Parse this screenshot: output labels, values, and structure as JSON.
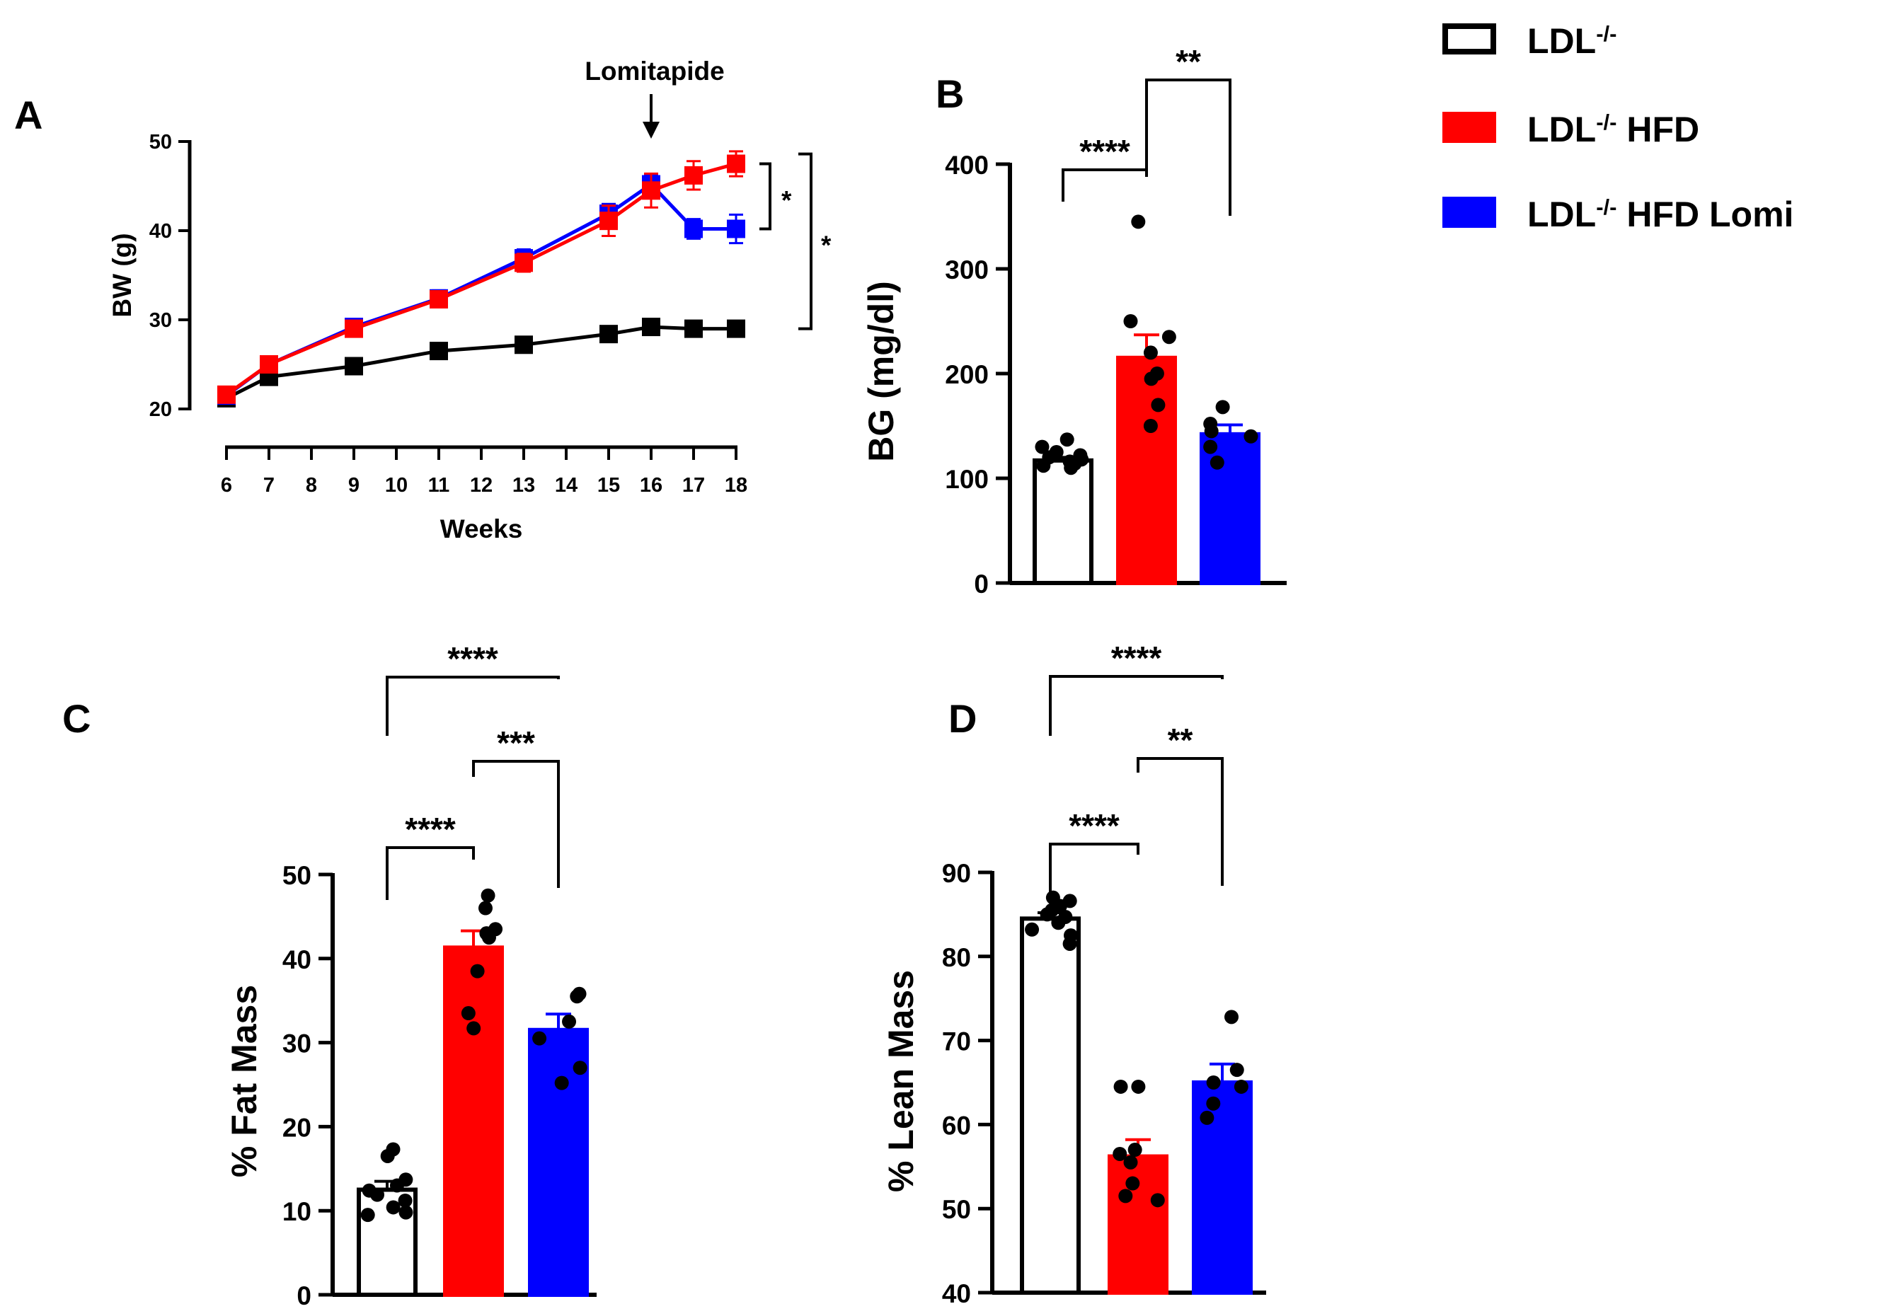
{
  "legend": {
    "items": [
      {
        "label": "LDL",
        "sup": "-/-",
        "suffix": "",
        "fill": "#ffffff",
        "stroke": "#000000"
      },
      {
        "label": "LDL",
        "sup": "-/-",
        "suffix": " HFD",
        "fill": "#ff0000",
        "stroke": "#ff0000"
      },
      {
        "label": "LDL",
        "sup": "-/-",
        "suffix": " HFD Lomi",
        "fill": "#0000ff",
        "stroke": "#0000ff"
      }
    ]
  },
  "chart_data": [
    {
      "panel": "A",
      "type": "line",
      "xlabel": "Weeks",
      "ylabel": "BW (g)",
      "ylim": [
        20,
        50
      ],
      "yticks": [
        20,
        30,
        40,
        50
      ],
      "xticks": [
        6,
        7,
        8,
        9,
        10,
        11,
        12,
        13,
        14,
        15,
        16,
        17,
        18
      ],
      "annotation": "Lomitapide",
      "annotation_x": 16,
      "significance": [
        "*",
        "*"
      ],
      "series": [
        {
          "name": "LDL-/-",
          "color": "#000000",
          "x": [
            6,
            7,
            9,
            11,
            13,
            15,
            16,
            17,
            18
          ],
          "y": [
            21.2,
            23.6,
            24.8,
            26.5,
            27.2,
            28.4,
            29.2,
            29.0,
            29.0
          ],
          "err": [
            0.6,
            0.6,
            0.6,
            0.6,
            0.6,
            0.7,
            0.7,
            0.6,
            0.6
          ]
        },
        {
          "name": "LDL-/- HFD Lomi",
          "color": "#0000ff",
          "x": [
            6,
            7,
            9,
            11,
            13,
            15,
            16,
            17,
            18
          ],
          "y": [
            21.5,
            25.0,
            29.2,
            32.4,
            36.9,
            41.9,
            45.2,
            40.2,
            40.2
          ],
          "err": [
            0.6,
            0.7,
            0.8,
            0.9,
            1.0,
            1.1,
            1.1,
            1.1,
            1.6
          ]
        },
        {
          "name": "LDL-/- HFD",
          "color": "#ff0000",
          "x": [
            6,
            7,
            9,
            11,
            13,
            15,
            16,
            17,
            18
          ],
          "y": [
            21.6,
            25.0,
            29.0,
            32.3,
            36.4,
            41.1,
            44.5,
            46.2,
            47.5
          ],
          "err": [
            0.6,
            0.7,
            0.8,
            0.9,
            1.0,
            1.7,
            1.9,
            1.6,
            1.4
          ]
        }
      ]
    },
    {
      "panel": "B",
      "type": "bar",
      "ylabel": "BG (mg/dl)",
      "ylim": [
        0,
        400
      ],
      "yticks": [
        0,
        100,
        200,
        300,
        400
      ],
      "categories": [
        "LDL-/-",
        "LDL-/- HFD",
        "LDL-/- HFD Lomi"
      ],
      "values": [
        117,
        215,
        142
      ],
      "sem": [
        3,
        22,
        9
      ],
      "points": [
        [
          137,
          130,
          125,
          122,
          120,
          118,
          116,
          114,
          112,
          110
        ],
        [
          345,
          250,
          235,
          220,
          200,
          195,
          170,
          150
        ],
        [
          168,
          152,
          145,
          140,
          130,
          115
        ]
      ],
      "comparisons": [
        {
          "groups": [
            0,
            1
          ],
          "label": "****"
        },
        {
          "groups": [
            1,
            2
          ],
          "label": "**"
        }
      ]
    },
    {
      "panel": "C",
      "type": "bar",
      "ylabel": "% Fat Mass",
      "ylim": [
        0,
        50
      ],
      "yticks": [
        0,
        10,
        20,
        30,
        40,
        50
      ],
      "categories": [
        "LDL-/-",
        "LDL-/- HFD",
        "LDL-/- HFD Lomi"
      ],
      "values": [
        12.5,
        41.3,
        31.5
      ],
      "sem": [
        1.0,
        2.0,
        1.9
      ],
      "points": [
        [
          17.3,
          16.5,
          13.7,
          13.0,
          12.4,
          11.9,
          11.2,
          10.4,
          9.8,
          9.5
        ],
        [
          47.5,
          46.0,
          43.5,
          43.0,
          42.5,
          38.5,
          33.5,
          31.7
        ],
        [
          35.8,
          35.5,
          32.5,
          30.5,
          27.0,
          25.2
        ]
      ],
      "comparisons": [
        {
          "groups": [
            0,
            1
          ],
          "label": "****"
        },
        {
          "groups": [
            1,
            2
          ],
          "label": "***"
        },
        {
          "groups": [
            0,
            2
          ],
          "label": "****"
        }
      ]
    },
    {
      "panel": "D",
      "type": "bar",
      "ylabel": "% Lean Mass",
      "ylim": [
        40,
        90
      ],
      "yticks": [
        40,
        50,
        60,
        70,
        80,
        90
      ],
      "categories": [
        "LDL-/-",
        "LDL-/- HFD",
        "LDL-/- HFD Lomi"
      ],
      "values": [
        84.5,
        56.2,
        65.0
      ],
      "sem": [
        0.7,
        2.0,
        2.2
      ],
      "points": [
        [
          87.0,
          86.6,
          86.0,
          85.5,
          85.0,
          84.7,
          84.0,
          83.2,
          82.5,
          81.5
        ],
        [
          64.5,
          64.5,
          57.0,
          56.5,
          55.5,
          53.0,
          51.5,
          51.0
        ],
        [
          72.8,
          66.5,
          65.0,
          64.5,
          62.5,
          60.8
        ]
      ],
      "comparisons": [
        {
          "groups": [
            0,
            1
          ],
          "label": "****"
        },
        {
          "groups": [
            1,
            2
          ],
          "label": "**"
        },
        {
          "groups": [
            0,
            2
          ],
          "label": "****"
        }
      ]
    }
  ]
}
